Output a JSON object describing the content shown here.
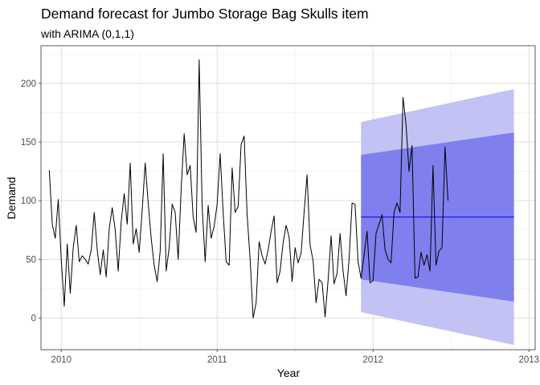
{
  "chart_data": {
    "type": "line",
    "title": "Demand forecast for Jumbo Storage Bag Skulls item",
    "subtitle": "with ARIMA (0,1,1)",
    "xlabel": "Year",
    "ylabel": "Demand",
    "xlim": [
      2009.87,
      2013.04
    ],
    "ylim": [
      -27,
      232
    ],
    "x_ticks": [
      2010,
      2011,
      2012,
      2013
    ],
    "x_tick_labels": [
      "2010",
      "2011",
      "2012",
      "2013"
    ],
    "y_ticks": [
      0,
      50,
      100,
      150,
      200
    ],
    "y_tick_labels": [
      "0",
      "50",
      "100",
      "150",
      "200"
    ],
    "grid": true,
    "legend": "none",
    "colors": {
      "panel_border": "#333333",
      "grid_major": "#dddddd",
      "grid_minor": "#eeeeee",
      "history_line": "#000000",
      "forecast_line": "#0000ff",
      "band_95": "#c2c2f4",
      "band_80": "#7f7fee"
    },
    "history": {
      "start": 2009.9231,
      "step": 0.019231,
      "values": [
        126,
        80,
        68,
        101,
        50,
        10,
        63,
        21,
        60,
        79,
        48,
        53,
        50,
        46,
        58,
        90,
        58,
        37,
        58,
        35,
        76,
        94,
        75,
        40,
        82,
        106,
        80,
        132,
        63,
        76,
        56,
        92,
        132,
        98,
        68,
        45,
        31,
        57,
        140,
        40,
        60,
        97,
        90,
        50,
        110,
        157,
        122,
        130,
        86,
        73,
        220,
        95,
        48,
        96,
        68,
        78,
        97,
        140,
        90,
        48,
        45,
        128,
        90,
        95,
        148,
        155,
        88,
        50,
        0,
        13,
        65,
        53,
        46,
        58,
        74,
        87,
        30,
        40,
        64,
        79,
        69,
        31,
        60,
        47,
        55,
        90,
        122,
        62,
        49,
        13,
        33,
        30,
        1,
        32,
        70,
        29,
        38,
        72,
        40,
        19,
        50,
        98,
        97,
        48,
        34,
        53,
        74,
        30,
        32,
        72,
        80,
        88,
        58,
        50,
        47,
        90,
        98,
        90,
        188,
        165,
        125,
        147,
        34,
        35,
        56,
        45,
        54,
        40,
        130,
        45,
        57,
        60,
        146,
        100
      ]
    },
    "forecast": {
      "start": 2011.9231,
      "end": 2012.9039,
      "point": [
        86,
        86
      ],
      "lo80": [
        33,
        14
      ],
      "hi80": [
        139,
        158
      ],
      "lo95": [
        5,
        -23
      ],
      "hi95": [
        167,
        195
      ]
    }
  }
}
